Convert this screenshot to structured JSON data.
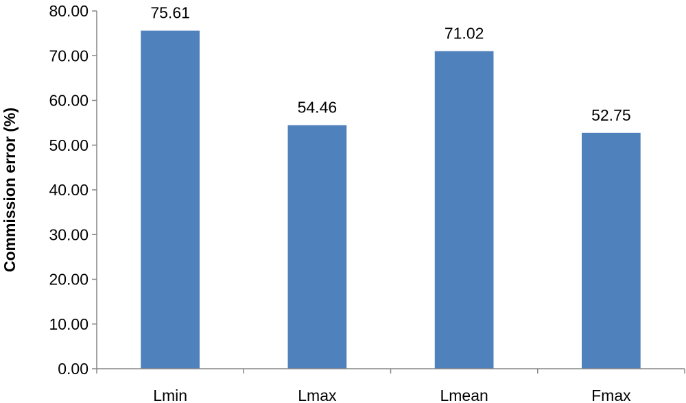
{
  "chart_data": {
    "type": "bar",
    "title": "",
    "xlabel": "",
    "ylabel": "Commission error (%)",
    "categories": [
      "Lmin",
      "Lmax",
      "Lmean",
      "Fmax"
    ],
    "values": [
      75.61,
      54.46,
      71.02,
      52.75
    ],
    "data_labels": [
      "75.61",
      "54.46",
      "71.02",
      "52.75"
    ],
    "ylim": [
      0,
      80
    ],
    "y_ticks": [
      0,
      10,
      20,
      30,
      40,
      50,
      60,
      70,
      80
    ],
    "y_tick_labels": [
      "0.00",
      "10.00",
      "20.00",
      "30.00",
      "40.00",
      "50.00",
      "60.00",
      "70.00",
      "80.00"
    ],
    "grid": false,
    "legend": "none",
    "colors": {
      "bar": "#4f81bd",
      "axis": "#868686",
      "text": "#000000"
    }
  }
}
